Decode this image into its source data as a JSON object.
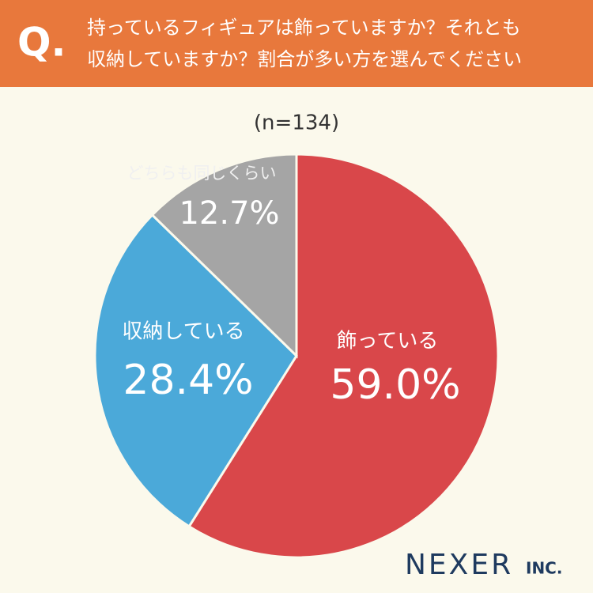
{
  "header": {
    "mark": "Q."
  },
  "chart_data": {
    "type": "pie",
    "title_lines": [
      "持っているフィギュアは飾っていますか？それとも",
      "収納していますか？割合が多い方を選んでください"
    ],
    "subtitle": "(n=134)",
    "categories": [
      "飾っている",
      "収納している",
      "どちらも同じくらい"
    ],
    "values": [
      59.0,
      28.4,
      12.7
    ],
    "value_labels": [
      "59.0%",
      "28.4%",
      "12.7%"
    ],
    "colors": [
      "#d9474a",
      "#4ba9d9",
      "#a5a5a5"
    ]
  },
  "footer": {
    "logo": "NEXER",
    "suffix": "INC."
  }
}
